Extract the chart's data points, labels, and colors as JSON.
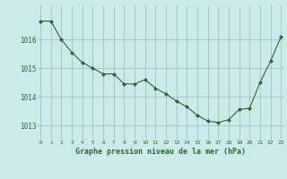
{
  "x": [
    0,
    1,
    2,
    3,
    4,
    5,
    6,
    7,
    8,
    9,
    10,
    11,
    12,
    13,
    14,
    15,
    16,
    17,
    18,
    19,
    20,
    21,
    22,
    23
  ],
  "y": [
    1016.65,
    1016.65,
    1016.0,
    1015.55,
    1015.2,
    1015.0,
    1014.8,
    1014.8,
    1014.45,
    1014.45,
    1014.6,
    1014.3,
    1014.1,
    1013.85,
    1013.65,
    1013.35,
    1013.15,
    1013.1,
    1013.2,
    1013.55,
    1013.6,
    1014.5,
    1015.25,
    1016.1
  ],
  "line_color": "#2d6a2d",
  "marker": "D",
  "marker_size": 2.0,
  "background_color": "#cceaea",
  "grid_color": "#99bbbb",
  "xlabel": "Graphe pression niveau de la mer (hPa)",
  "xlabel_color": "#2d6a2d",
  "tick_label_color": "#2d6a2d",
  "ylim": [
    1012.5,
    1017.2
  ],
  "yticks": [
    1013,
    1014,
    1015,
    1016
  ],
  "xticks": [
    0,
    1,
    2,
    3,
    4,
    5,
    6,
    7,
    8,
    9,
    10,
    11,
    12,
    13,
    14,
    15,
    16,
    17,
    18,
    19,
    20,
    21,
    22,
    23
  ],
  "xlim": [
    -0.3,
    23.3
  ]
}
